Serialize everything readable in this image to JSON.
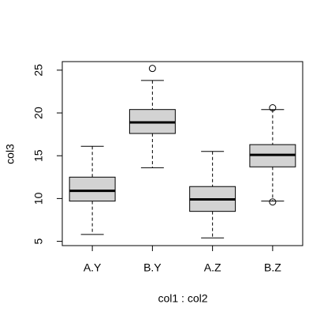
{
  "chart_data": {
    "type": "box",
    "x_label": "col1 : col2",
    "y_label": "col3",
    "categories": [
      "A.Y",
      "B.Y",
      "A.Z",
      "B.Z"
    ],
    "color": "#d3d3d3",
    "boxes": [
      {
        "min": 5.8,
        "q1": 9.7,
        "median": 10.9,
        "q3": 12.5,
        "max": 16.1,
        "outliers": []
      },
      {
        "min": 13.6,
        "q1": 17.6,
        "median": 18.9,
        "q3": 20.4,
        "max": 23.8,
        "outliers": [
          25.2
        ]
      },
      {
        "min": 5.4,
        "q1": 8.5,
        "median": 9.9,
        "q3": 11.4,
        "max": 15.5,
        "outliers": []
      },
      {
        "min": 9.7,
        "q1": 13.7,
        "median": 15.1,
        "q3": 16.3,
        "max": 20.4,
        "outliers": [
          20.6,
          9.6
        ]
      }
    ],
    "ylim": [
      4.5,
      26.0
    ],
    "yticks": [
      5,
      10,
      15,
      20,
      25
    ]
  }
}
